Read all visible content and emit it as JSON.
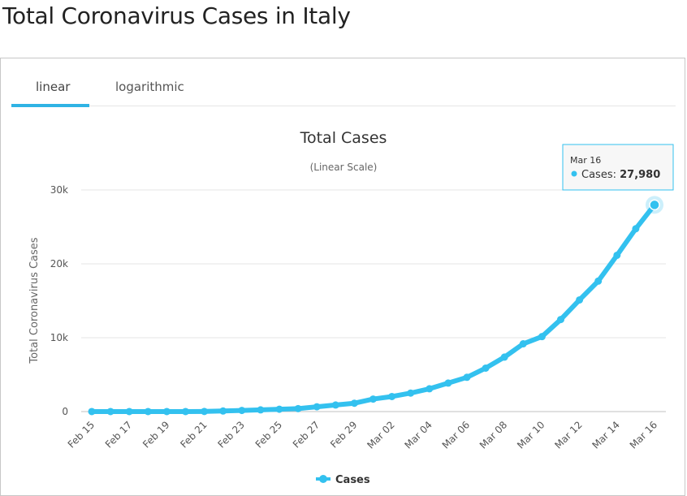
{
  "page": {
    "title": "Total Coronavirus Cases in Italy"
  },
  "tabs": [
    {
      "label": "linear",
      "active": true
    },
    {
      "label": "logarithmic",
      "active": false
    }
  ],
  "colors": {
    "series": "#33c1ef",
    "tab_accent": "#2fb3e4",
    "grid": "#e6e6e6"
  },
  "tooltip": {
    "date": "Mar 16",
    "series_label": "Cases: ",
    "value": "27,980"
  },
  "chart_data": {
    "type": "line",
    "title": "Total Cases",
    "subtitle": "(Linear Scale)",
    "ylabel": "Total Coronavirus Cases",
    "xlabel": "",
    "ylim": [
      0,
      30000
    ],
    "yticks": [
      0,
      10000,
      20000,
      30000
    ],
    "ytick_labels": [
      "0",
      "10k",
      "20k",
      "30k"
    ],
    "x": [
      "Feb 15",
      "Feb 16",
      "Feb 17",
      "Feb 18",
      "Feb 19",
      "Feb 20",
      "Feb 21",
      "Feb 22",
      "Feb 23",
      "Feb 24",
      "Feb 25",
      "Feb 26",
      "Feb 27",
      "Feb 28",
      "Feb 29",
      "Mar 01",
      "Mar 02",
      "Mar 03",
      "Mar 04",
      "Mar 05",
      "Mar 06",
      "Mar 07",
      "Mar 08",
      "Mar 09",
      "Mar 10",
      "Mar 11",
      "Mar 12",
      "Mar 13",
      "Mar 14",
      "Mar 15",
      "Mar 16"
    ],
    "xtick_labels": [
      "Feb 15",
      "Feb 17",
      "Feb 19",
      "Feb 21",
      "Feb 23",
      "Feb 25",
      "Feb 27",
      "Feb 29",
      "Mar 02",
      "Mar 04",
      "Mar 06",
      "Mar 08",
      "Mar 10",
      "Mar 12",
      "Mar 14",
      "Mar 16"
    ],
    "series": [
      {
        "name": "Cases",
        "values": [
          3,
          3,
          3,
          3,
          3,
          3,
          20,
          79,
          152,
          229,
          322,
          400,
          650,
          888,
          1128,
          1694,
          2036,
          2502,
          3089,
          3858,
          4636,
          5883,
          7375,
          9172,
          10149,
          12462,
          15113,
          17660,
          21157,
          24747,
          27980
        ]
      }
    ],
    "legend": "bottom-center",
    "grid": true
  }
}
